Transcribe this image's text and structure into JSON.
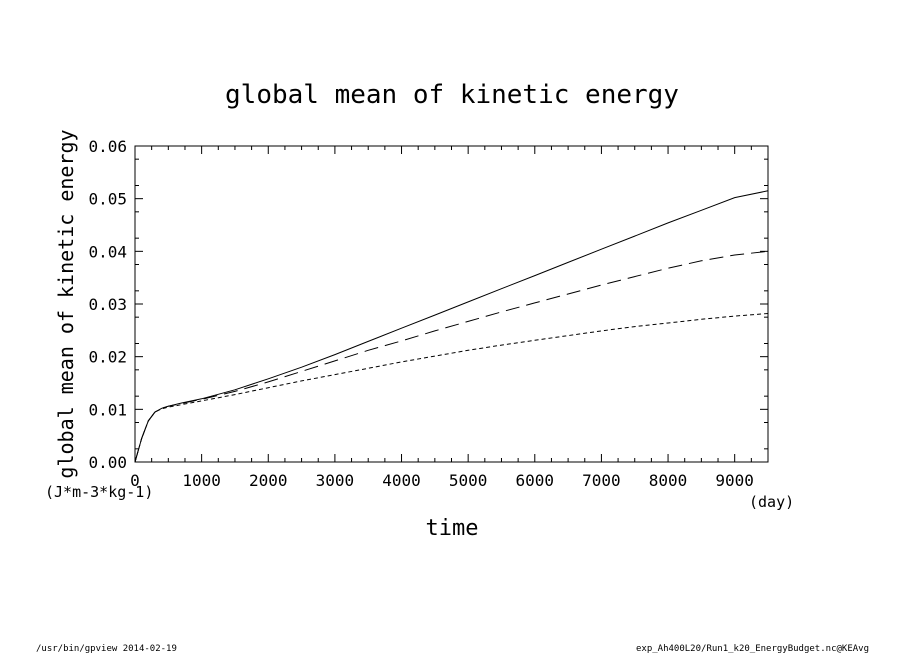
{
  "chart_data": {
    "type": "line",
    "title": "global mean of kinetic energy",
    "xlabel": "time",
    "ylabel": "global mean of kinetic energy",
    "x_unit": "(day)",
    "y_unit": "(J*m-3*kg-1)",
    "xlim": [
      0,
      9500
    ],
    "ylim": [
      0,
      0.06
    ],
    "x_ticks": [
      "0",
      "1000",
      "2000",
      "3000",
      "4000",
      "5000",
      "6000",
      "7000",
      "8000",
      "9000"
    ],
    "y_ticks": [
      "0.00",
      "0.01",
      "0.02",
      "0.03",
      "0.04",
      "0.05",
      "0.06"
    ],
    "grid": false,
    "legend": "none",
    "x": [
      0,
      100,
      200,
      300,
      400,
      500,
      700,
      1000,
      1500,
      2000,
      2500,
      3000,
      3500,
      4000,
      4500,
      5000,
      5500,
      6000,
      6500,
      7000,
      7500,
      8000,
      8500,
      9000,
      9500
    ],
    "series": [
      {
        "line_style": "solid",
        "values": [
          0.0,
          0.0045,
          0.0078,
          0.0095,
          0.0102,
          0.0106,
          0.0112,
          0.012,
          0.0137,
          0.0158,
          0.018,
          0.0204,
          0.0229,
          0.0254,
          0.0279,
          0.0304,
          0.0329,
          0.0354,
          0.0379,
          0.0404,
          0.0429,
          0.0454,
          0.0478,
          0.0502,
          0.0515
        ]
      },
      {
        "line_style": "long-dash",
        "values": [
          0.0,
          0.0045,
          0.0078,
          0.0095,
          0.0102,
          0.0106,
          0.0111,
          0.0119,
          0.0134,
          0.0152,
          0.0172,
          0.0192,
          0.0212,
          0.023,
          0.0249,
          0.0267,
          0.0285,
          0.0302,
          0.0319,
          0.0336,
          0.0352,
          0.0368,
          0.0382,
          0.0393,
          0.04
        ]
      },
      {
        "line_style": "short-dash",
        "values": [
          0.0,
          0.0045,
          0.0078,
          0.0095,
          0.0101,
          0.0104,
          0.0109,
          0.0116,
          0.0128,
          0.0141,
          0.0154,
          0.0166,
          0.0178,
          0.019,
          0.0201,
          0.0212,
          0.0222,
          0.0231,
          0.024,
          0.0249,
          0.0257,
          0.0264,
          0.0271,
          0.0277,
          0.0282
        ]
      }
    ]
  },
  "footer": {
    "left": "/usr/bin/gpview   2014-02-19",
    "right": "exp_Ah400L20/Run1_k20_EnergyBudget.nc@KEAvg"
  }
}
